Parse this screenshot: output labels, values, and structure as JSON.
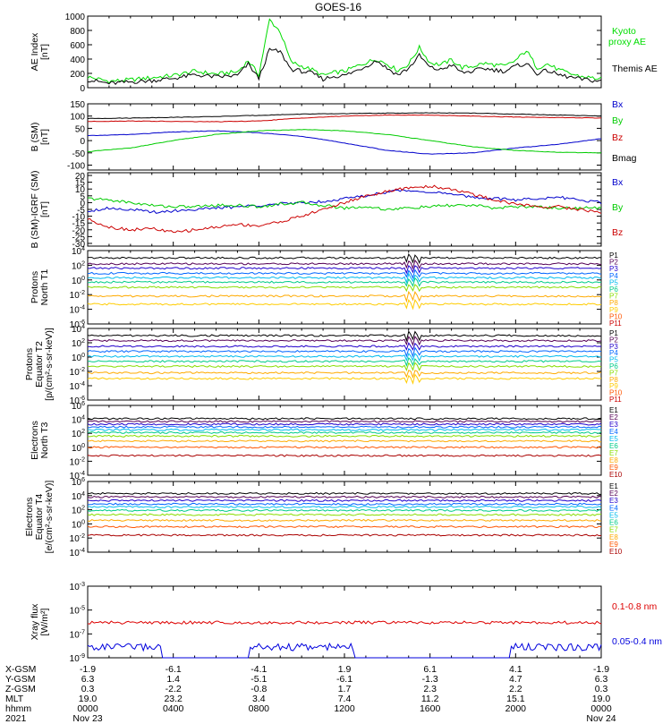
{
  "title": "GOES-16",
  "chart_data": [
    {
      "type": "line",
      "ylabel": "AE Index\n[nT]",
      "ylim": [
        0,
        1000
      ],
      "yticks": [
        0,
        200,
        400,
        600,
        800,
        1000
      ],
      "series": [
        {
          "name": "Kyoto\nproxy AE",
          "color": "#00dd00",
          "x": [
            0,
            1,
            2,
            3,
            4,
            5,
            6,
            7,
            7.5,
            8,
            8.5,
            9,
            9.5,
            10,
            10.5,
            11,
            11.5,
            12,
            12.5,
            13,
            13.5,
            14,
            14.5,
            15,
            15.5,
            16,
            16.5,
            17,
            17.5,
            18,
            18.5,
            19,
            19.5,
            20,
            20.5,
            21,
            21.5,
            22,
            22.5,
            23,
            24
          ],
          "values": [
            150,
            90,
            110,
            140,
            170,
            230,
            190,
            220,
            380,
            180,
            950,
            780,
            360,
            300,
            250,
            170,
            210,
            230,
            290,
            350,
            400,
            330,
            240,
            330,
            560,
            350,
            320,
            390,
            280,
            300,
            340,
            320,
            300,
            380,
            520,
            280,
            330,
            250,
            200,
            160,
            120
          ]
        },
        {
          "name": "Themis AE",
          "color": "#000000",
          "x": [
            0,
            1,
            2,
            3,
            4,
            5,
            6,
            7,
            7.5,
            8,
            8.5,
            9,
            9.5,
            10,
            10.5,
            11,
            11.5,
            12,
            12.5,
            13,
            13.5,
            14,
            14.5,
            15,
            15.5,
            16,
            16.5,
            17,
            17.5,
            18,
            18.5,
            19,
            19.5,
            20,
            20.5,
            21,
            21.5,
            22,
            22.5,
            23,
            24
          ],
          "values": [
            110,
            60,
            80,
            100,
            130,
            180,
            150,
            170,
            330,
            130,
            530,
            500,
            260,
            230,
            200,
            120,
            160,
            170,
            230,
            300,
            380,
            270,
            180,
            270,
            450,
            280,
            250,
            320,
            210,
            230,
            270,
            250,
            230,
            300,
            340,
            200,
            240,
            180,
            150,
            120,
            90
          ]
        }
      ]
    },
    {
      "type": "line",
      "ylabel": "B (SM)\n[nT]",
      "ylim": [
        -120,
        150
      ],
      "yticks": [
        -100,
        -50,
        0,
        50,
        100,
        150
      ],
      "series": [
        {
          "name": "Bx",
          "color": "#0000cc",
          "x": [
            0,
            2,
            4,
            6,
            8,
            10,
            12,
            14,
            16,
            18,
            20,
            22,
            24
          ],
          "values": [
            20,
            25,
            35,
            40,
            32,
            18,
            -10,
            -40,
            -55,
            -50,
            -30,
            -15,
            8
          ]
        },
        {
          "name": "By",
          "color": "#00cc00",
          "x": [
            0,
            2,
            4,
            6,
            8,
            10,
            12,
            14,
            16,
            18,
            20,
            22,
            24
          ],
          "values": [
            -45,
            -30,
            0,
            25,
            40,
            45,
            40,
            25,
            0,
            -25,
            -40,
            -48,
            -50
          ]
        },
        {
          "name": "Bz",
          "color": "#cc0000",
          "x": [
            0,
            2,
            4,
            6,
            8,
            10,
            12,
            14,
            16,
            18,
            20,
            22,
            24
          ],
          "values": [
            78,
            80,
            78,
            77,
            80,
            92,
            100,
            104,
            104,
            100,
            96,
            94,
            92
          ]
        },
        {
          "name": "Bmag",
          "color": "#000000",
          "x": [
            0,
            2,
            4,
            6,
            8,
            10,
            12,
            14,
            16,
            18,
            20,
            22,
            24
          ],
          "values": [
            90,
            92,
            95,
            98,
            103,
            108,
            110,
            112,
            113,
            112,
            108,
            104,
            100
          ]
        }
      ]
    },
    {
      "type": "line",
      "ylabel": "B (SM)-IGRF (SM)\n[nT]",
      "ylim": [
        -32,
        22
      ],
      "yticks": [
        -30,
        -25,
        -20,
        -15,
        -10,
        -5,
        0,
        5,
        10,
        15,
        20
      ],
      "series": [
        {
          "name": "Bx",
          "color": "#0000cc",
          "x": [
            0,
            1,
            2,
            3,
            4,
            5,
            6,
            7,
            8,
            9,
            10,
            11,
            12,
            13,
            14,
            15,
            16,
            17,
            18,
            19,
            20,
            21,
            22,
            23,
            24
          ],
          "values": [
            -6,
            -4,
            -5,
            -7,
            -6,
            -5,
            -4,
            -3,
            -2,
            -1,
            0,
            1,
            3,
            5,
            8,
            9,
            8,
            6,
            4,
            3,
            2,
            3,
            4,
            2,
            0
          ]
        },
        {
          "name": "By",
          "color": "#00cc00",
          "x": [
            0,
            1,
            2,
            3,
            4,
            5,
            6,
            7,
            8,
            9,
            10,
            11,
            12,
            13,
            14,
            15,
            16,
            17,
            18,
            19,
            20,
            21,
            22,
            23,
            24
          ],
          "values": [
            3,
            2,
            0,
            -2,
            -3,
            -3,
            -2,
            -2,
            -3,
            -1,
            0,
            -2,
            -4,
            -3,
            -5,
            -4,
            -3,
            -2,
            -2,
            -4,
            -3,
            -3,
            -4,
            -4,
            -4
          ]
        },
        {
          "name": "Bz",
          "color": "#cc0000",
          "x": [
            0,
            1,
            2,
            3,
            4,
            5,
            6,
            7,
            8,
            9,
            10,
            11,
            12,
            13,
            14,
            15,
            16,
            17,
            18,
            19,
            20,
            21,
            22,
            23,
            24
          ],
          "values": [
            -12,
            -18,
            -20,
            -19,
            -22,
            -20,
            -18,
            -16,
            -17,
            -14,
            -10,
            -5,
            0,
            5,
            8,
            11,
            12,
            10,
            6,
            2,
            -1,
            -3,
            -3,
            -5,
            -7
          ]
        }
      ]
    },
    {
      "type": "line",
      "scale": "log",
      "ylabel": "Protons\nNorth T1",
      "ylim": [
        -6,
        4
      ],
      "yticks": [
        "10^4",
        "10^2",
        "10^0",
        "10^-2",
        "10^-4",
        "10^-6"
      ],
      "event_hour": 15.2,
      "series": [
        {
          "name": "P1",
          "color": "#000000",
          "level": 3.0
        },
        {
          "name": "P2",
          "color": "#550055",
          "level": 2.2
        },
        {
          "name": "P3",
          "color": "#2200cc",
          "level": 1.6
        },
        {
          "name": "P4",
          "color": "#0066ff",
          "level": 0.9
        },
        {
          "name": "P5",
          "color": "#00bbee",
          "level": 0.3
        },
        {
          "name": "P6",
          "color": "#00cc88",
          "level": -0.3
        },
        {
          "name": "P7",
          "color": "#88dd00",
          "level": -1.0
        },
        {
          "name": "P8",
          "color": "#ffaa00",
          "level": -2.2
        },
        {
          "name": "P9",
          "color": "#ffcc00",
          "level": -3.3
        }
      ],
      "legend": [
        "P1",
        "P2",
        "P3",
        "P4",
        "P5",
        "P6",
        "P7",
        "P8",
        "P9",
        "P10",
        "P11"
      ],
      "legend_colors": [
        "#000000",
        "#550055",
        "#2200cc",
        "#0066ff",
        "#00bbee",
        "#00cc88",
        "#88dd00",
        "#ffaa00",
        "#ffcc00",
        "#ff5500",
        "#cc0000"
      ]
    },
    {
      "type": "line",
      "scale": "log",
      "ylabel": "Protons\nEquator T2\n[p/(cm²-s-sr-keV)]",
      "ylim": [
        -6,
        4
      ],
      "yticks": [
        "10^4",
        "10^2",
        "10^0",
        "10^-2",
        "10^-4",
        "10^-6"
      ],
      "event_hour": 15.2,
      "series": [
        {
          "name": "P1",
          "color": "#000000",
          "level": 3.0
        },
        {
          "name": "P2",
          "color": "#550055",
          "level": 2.3
        },
        {
          "name": "P3",
          "color": "#2200cc",
          "level": 1.5
        },
        {
          "name": "P4",
          "color": "#0066ff",
          "level": 0.8
        },
        {
          "name": "P5",
          "color": "#00bbee",
          "level": 0.1
        },
        {
          "name": "P6",
          "color": "#00cc88",
          "level": -0.6
        },
        {
          "name": "P7",
          "color": "#88dd00",
          "level": -1.3
        },
        {
          "name": "P8",
          "color": "#ffaa00",
          "level": -2.2
        },
        {
          "name": "P9",
          "color": "#ffcc00",
          "level": -3.0
        }
      ],
      "legend": [
        "P1",
        "P2",
        "P3",
        "P4",
        "P5",
        "P6",
        "P7",
        "P8",
        "P9",
        "P10",
        "P11"
      ],
      "legend_colors": [
        "#000000",
        "#550055",
        "#2200cc",
        "#0066ff",
        "#00bbee",
        "#00cc88",
        "#88dd00",
        "#ffaa00",
        "#ffcc00",
        "#ff5500",
        "#cc0000"
      ]
    },
    {
      "type": "line",
      "scale": "log",
      "ylabel": "Electrons\nNorth T3",
      "ylim": [
        -4,
        6
      ],
      "yticks": [
        "10^6",
        "10^4",
        "10^2",
        "10^0",
        "10^-2",
        "10^-4"
      ],
      "series": [
        {
          "name": "E1",
          "color": "#000000",
          "level": 4.1
        },
        {
          "name": "E2",
          "color": "#550055",
          "level": 3.7
        },
        {
          "name": "E3",
          "color": "#2200cc",
          "level": 3.3
        },
        {
          "name": "E4",
          "color": "#0066ff",
          "level": 2.9
        },
        {
          "name": "E5",
          "color": "#00bbee",
          "level": 2.5
        },
        {
          "name": "E6",
          "color": "#00cc88",
          "level": 2.1
        },
        {
          "name": "E7",
          "color": "#88dd00",
          "level": 1.6
        },
        {
          "name": "E8",
          "color": "#ffaa00",
          "level": 0.9
        },
        {
          "name": "E9",
          "color": "#ff5500",
          "level": 0.0
        },
        {
          "name": "E10",
          "color": "#aa0000",
          "level": -1.2
        }
      ],
      "legend": [
        "E1",
        "E2",
        "E3",
        "E4",
        "E5",
        "E6",
        "E7",
        "E8",
        "E9",
        "E10"
      ],
      "legend_colors": [
        "#000000",
        "#550055",
        "#2200cc",
        "#0066ff",
        "#00bbee",
        "#00cc88",
        "#88dd00",
        "#ffaa00",
        "#ff5500",
        "#aa0000"
      ]
    },
    {
      "type": "line",
      "scale": "log",
      "ylabel": "Electrons\nEquator T4\n[e/(cm²-s-sr-keV)]",
      "ylim": [
        -4,
        6
      ],
      "yticks": [
        "10^6",
        "10^4",
        "10^2",
        "10^0",
        "10^-2",
        "10^-4"
      ],
      "series": [
        {
          "name": "E1",
          "color": "#000000",
          "level": 4.3
        },
        {
          "name": "E2",
          "color": "#550055",
          "level": 3.8
        },
        {
          "name": "E3",
          "color": "#2200cc",
          "level": 3.3
        },
        {
          "name": "E4",
          "color": "#0066ff",
          "level": 2.8
        },
        {
          "name": "E5",
          "color": "#00bbee",
          "level": 2.4
        },
        {
          "name": "E6",
          "color": "#00cc88",
          "level": 1.9
        },
        {
          "name": "E7",
          "color": "#88dd00",
          "level": 1.3
        },
        {
          "name": "E8",
          "color": "#ffaa00",
          "level": 0.5
        },
        {
          "name": "E9",
          "color": "#ff5500",
          "level": -0.4
        },
        {
          "name": "E10",
          "color": "#aa0000",
          "level": -1.6
        }
      ],
      "legend": [
        "E1",
        "E2",
        "E3",
        "E4",
        "E5",
        "E6",
        "E7",
        "E8",
        "E9",
        "E10"
      ],
      "legend_colors": [
        "#000000",
        "#550055",
        "#2200cc",
        "#0066ff",
        "#00bbee",
        "#00cc88",
        "#88dd00",
        "#ffaa00",
        "#ff5500",
        "#aa0000"
      ]
    },
    {
      "type": "line",
      "scale": "log",
      "ylabel": "Xray flux\n[W/m²]",
      "ylim": [
        -9,
        -3
      ],
      "yticks": [
        "10^-3",
        "10^-5",
        "10^-7",
        "10^-9"
      ],
      "series": [
        {
          "name": "0.1-0.8 nm",
          "color": "#dd0000",
          "level": -6.05
        },
        {
          "name": "0.05-0.4 nm",
          "color": "#0000dd",
          "level": -8.3
        }
      ]
    }
  ],
  "xaxis": {
    "hours": [
      0,
      4,
      8,
      12,
      16,
      20,
      24
    ],
    "rows": [
      {
        "label": "X-GSM",
        "values": [
          "-1.9",
          "-6.1",
          "-4.1",
          "1.9",
          "6.1",
          "4.1",
          "-1.9"
        ]
      },
      {
        "label": "Y-GSM",
        "values": [
          "6.3",
          "1.4",
          "-5.1",
          "-6.1",
          "-1.3",
          "4.7",
          "6.3"
        ]
      },
      {
        "label": "Z-GSM",
        "values": [
          "0.3",
          "-2.2",
          "-0.8",
          "1.7",
          "2.3",
          "2.2",
          "0.3"
        ]
      },
      {
        "label": "MLT",
        "values": [
          "19.0",
          "23.2",
          "3.4",
          "7.4",
          "11.2",
          "15.1",
          "19.0"
        ]
      },
      {
        "label": "hhmm",
        "values": [
          "0000",
          "0400",
          "0800",
          "1200",
          "1600",
          "2000",
          "0000"
        ]
      },
      {
        "label": "2021",
        "values": [
          "Nov 23",
          "",
          "",
          "",
          "",
          "",
          "Nov 24"
        ]
      }
    ]
  }
}
